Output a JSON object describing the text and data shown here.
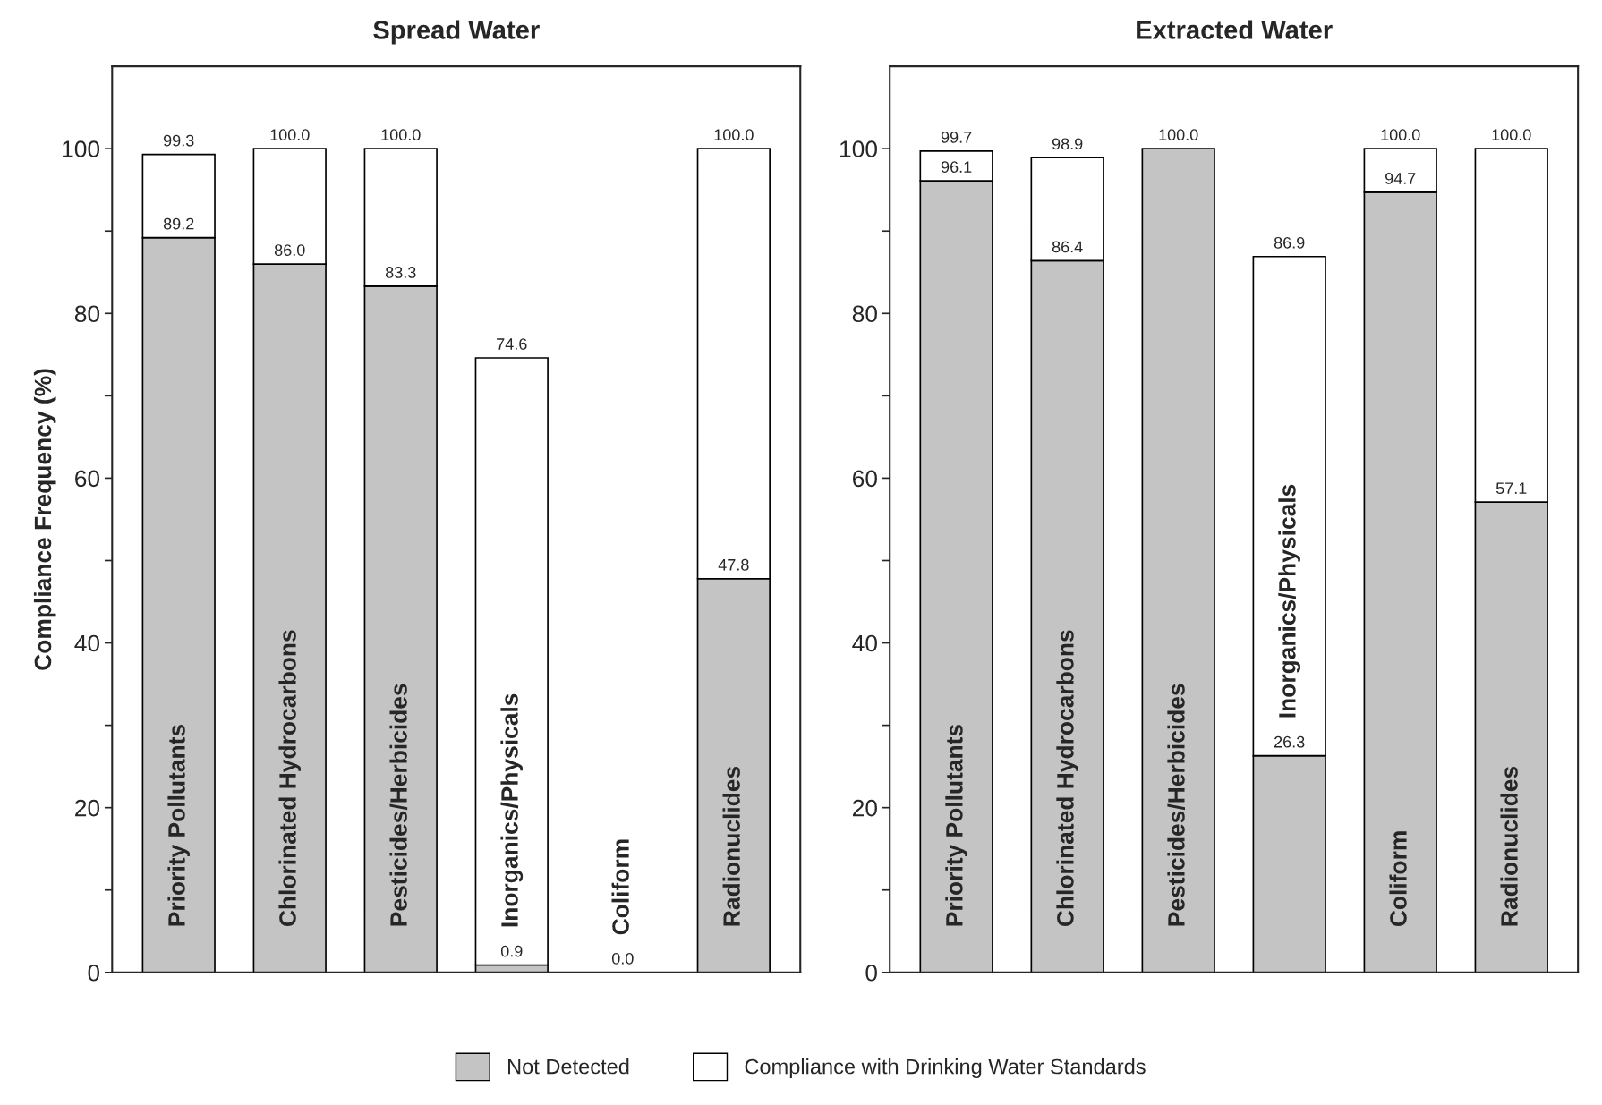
{
  "chart_data": [
    {
      "type": "bar",
      "title": "Spread Water",
      "ylabel": "Compliance Frequency (%)",
      "stacked": true,
      "legend": "bottom",
      "grid": false,
      "categories": [
        "Priority Pollutants",
        "Chlorinated Hydrocarbons",
        "Pesticides/Herbicides",
        "Inorganics/Physicals",
        "Coliform",
        "Radionuclides"
      ],
      "ylim": [
        0,
        110
      ],
      "yticks": [
        0,
        {
          "value": 10,
          "label": null
        },
        20,
        {
          "value": 30,
          "label": null
        },
        40,
        {
          "value": 50,
          "label": null
        },
        60,
        {
          "value": 70,
          "label": null
        },
        80,
        {
          "value": 90,
          "label": null
        },
        100
      ],
      "totals": [
        "99.3",
        "100.0",
        "100.0",
        "74.6",
        null,
        "100.0"
      ],
      "series": [
        {
          "name": "Not Detected",
          "color": "#c4c4c4",
          "values": [
            89.2,
            86.0,
            83.3,
            0.9,
            0.0,
            47.8
          ],
          "value_labels": [
            "89.2",
            "86.0",
            "83.3",
            "0.9",
            "0.0",
            "47.8"
          ]
        },
        {
          "name": "Compliance with Drinking Water Standards",
          "color": "#ffffff",
          "values": [
            10.1,
            14.0,
            16.7,
            73.7,
            0.0,
            52.2
          ]
        }
      ]
    },
    {
      "type": "bar",
      "title": "Extracted Water",
      "stacked": true,
      "grid": false,
      "categories": [
        "Priority Pollutants",
        "Chlorinated Hydrocarbons",
        "Pesticides/Herbicides",
        "Inorganics/Physicals",
        "Coliform",
        "Radionuclides"
      ],
      "ylim": [
        0,
        110
      ],
      "yticks": [
        0,
        {
          "value": 10,
          "label": null
        },
        20,
        {
          "value": 30,
          "label": null
        },
        40,
        {
          "value": 50,
          "label": null
        },
        60,
        {
          "value": 70,
          "label": null
        },
        80,
        {
          "value": 90,
          "label": null
        },
        100
      ],
      "totals": [
        "99.7",
        "98.9",
        "100.0",
        "86.9",
        "100.0",
        "100.0"
      ],
      "series": [
        {
          "color": "#c4c4c4",
          "values": [
            96.1,
            86.4,
            100.0,
            26.3,
            94.7,
            57.1
          ],
          "value_labels": [
            "96.1",
            "86.4",
            null,
            "26.3",
            "94.7",
            "57.1"
          ]
        },
        {
          "color": "#ffffff",
          "values": [
            3.6,
            12.5,
            0.0,
            60.6,
            5.3,
            42.9
          ]
        }
      ]
    }
  ]
}
